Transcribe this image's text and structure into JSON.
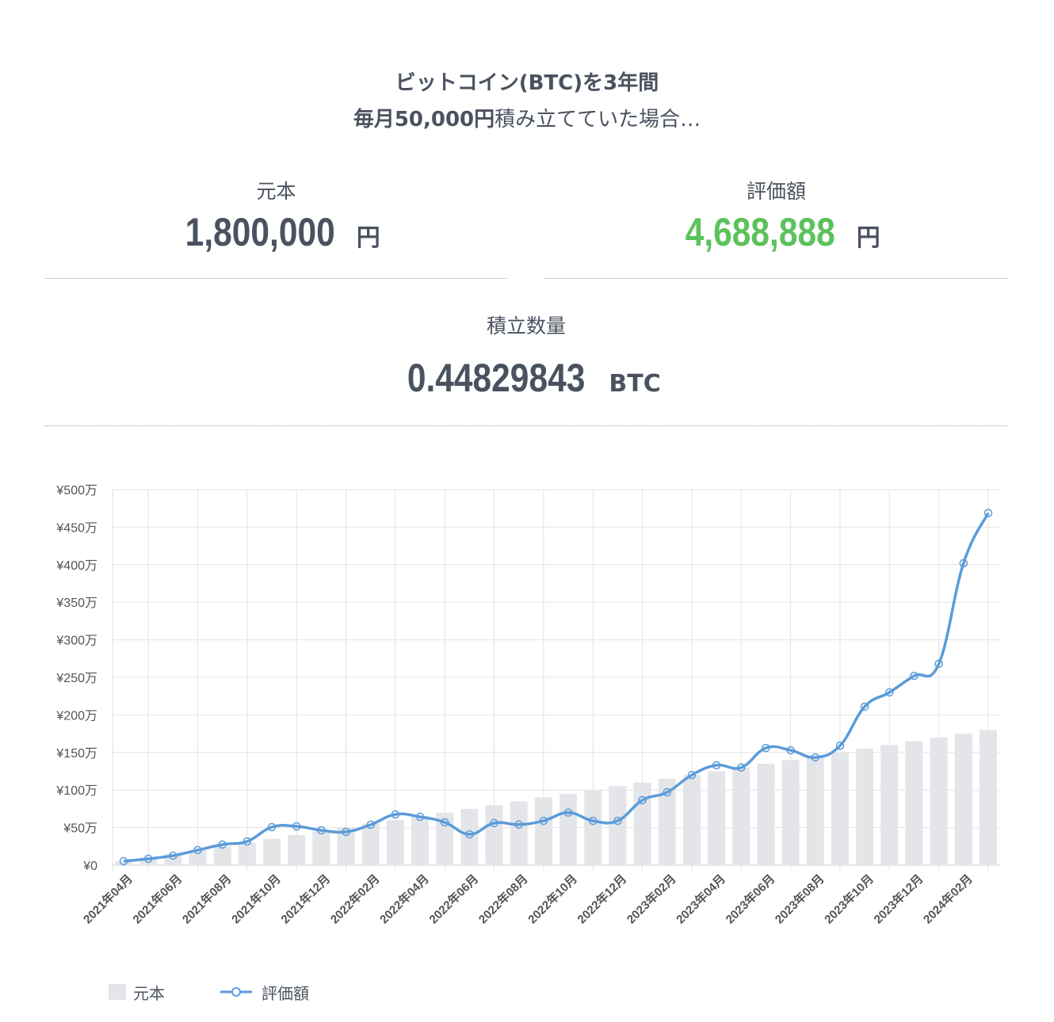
{
  "header": {
    "line1": "ビットコイン(BTC)を3年間",
    "line2_bold": "毎月50,000円",
    "line2_rest": "積み立てていた場合…"
  },
  "principal": {
    "label": "元本",
    "value": "1,800,000",
    "unit": "円"
  },
  "valuation": {
    "label": "評価額",
    "value": "4,688,888",
    "unit": "円",
    "color": "#5cc25c"
  },
  "quantity": {
    "label": "積立数量",
    "value": "0.44829843",
    "unit": "BTC"
  },
  "chart_data": {
    "type": "bar+line",
    "categories": [
      "2021年04月",
      "2021年05月",
      "2021年06月",
      "2021年07月",
      "2021年08月",
      "2021年09月",
      "2021年10月",
      "2021年11月",
      "2021年12月",
      "2022年01月",
      "2022年02月",
      "2022年03月",
      "2022年04月",
      "2022年05月",
      "2022年06月",
      "2022年07月",
      "2022年08月",
      "2022年09月",
      "2022年10月",
      "2022年11月",
      "2022年12月",
      "2023年01月",
      "2023年02月",
      "2023年03月",
      "2023年04月",
      "2023年05月",
      "2023年06月",
      "2023年07月",
      "2023年08月",
      "2023年09月",
      "2023年10月",
      "2023年11月",
      "2023年12月",
      "2024年01月",
      "2024年02月",
      "2024年03月"
    ],
    "series": [
      {
        "name": "元本",
        "type": "bar",
        "color": "#e4e5e9",
        "values": [
          5,
          10,
          15,
          20,
          25,
          30,
          35,
          40,
          45,
          50,
          55,
          60,
          65,
          70,
          75,
          80,
          85,
          90,
          95,
          100,
          105,
          110,
          115,
          120,
          125,
          130,
          135,
          140,
          145,
          150,
          155,
          160,
          165,
          170,
          175,
          180
        ]
      },
      {
        "name": "評価額",
        "type": "line",
        "color": "#5b9bd9",
        "values": [
          5.3,
          8.4,
          12.7,
          20,
          27.4,
          31.6,
          50.6,
          51.7,
          46.4,
          44.3,
          53.8,
          67.5,
          64.3,
          57,
          41,
          56,
          54,
          59,
          70,
          59,
          59,
          86.5,
          97,
          120,
          133,
          130,
          156,
          153,
          143.5,
          159,
          211,
          230,
          252,
          268,
          402,
          468.9
        ]
      }
    ],
    "y_unit": "万円",
    "ylim": [
      0,
      500
    ],
    "y_ticks": [
      "¥0",
      "¥50万",
      "¥100万",
      "¥150万",
      "¥200万",
      "¥250万",
      "¥300万",
      "¥350万",
      "¥400万",
      "¥450万",
      "¥500万"
    ],
    "grid": true,
    "legend": "bottom-left"
  }
}
